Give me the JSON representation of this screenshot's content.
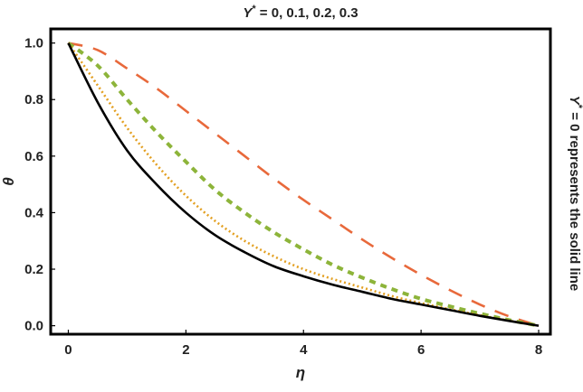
{
  "chart_data": {
    "type": "line",
    "title": {
      "var": "Y",
      "sup": "*",
      "rest": " = 0, 0.1, 0.2, 0.3"
    },
    "side_note": {
      "var": "Y",
      "sup": "*",
      "rest": " = 0 represents the solid line"
    },
    "xlabel": "η",
    "ylabel": "θ",
    "xlim": [
      -0.3,
      8.2
    ],
    "ylim": [
      -0.03,
      1.05
    ],
    "xticks": [
      0,
      2,
      4,
      6,
      8
    ],
    "xtick_labels": [
      "0",
      "2",
      "4",
      "6",
      "8"
    ],
    "yticks": [
      0.0,
      0.2,
      0.4,
      0.6,
      0.8,
      1.0
    ],
    "ytick_labels": [
      "0.0",
      "0.2",
      "0.4",
      "0.6",
      "0.8",
      "1.0"
    ],
    "grid": false,
    "series": [
      {
        "color": "#000000",
        "dash": "solid",
        "x": [
          0,
          0.5,
          1,
          1.5,
          2,
          2.5,
          3,
          3.5,
          4,
          4.5,
          5,
          5.5,
          6,
          6.5,
          7,
          7.5,
          8
        ],
        "y": [
          1.0,
          0.79,
          0.62,
          0.5,
          0.4,
          0.32,
          0.26,
          0.21,
          0.175,
          0.145,
          0.12,
          0.095,
          0.075,
          0.055,
          0.035,
          0.017,
          0.0
        ]
      },
      {
        "color": "#e3a022",
        "dash": "dotted",
        "x": [
          0,
          0.5,
          1,
          1.5,
          2,
          2.5,
          3,
          3.5,
          4,
          4.5,
          5,
          5.5,
          6,
          6.5,
          7,
          7.5,
          8
        ],
        "y": [
          1.0,
          0.85,
          0.7,
          0.57,
          0.46,
          0.37,
          0.3,
          0.245,
          0.2,
          0.165,
          0.135,
          0.105,
          0.08,
          0.058,
          0.037,
          0.018,
          0.0
        ]
      },
      {
        "color": "#8db43a",
        "dash": "dashed",
        "x": [
          0,
          0.5,
          1,
          1.5,
          2,
          2.5,
          3,
          3.5,
          4,
          4.5,
          5,
          5.5,
          6,
          6.5,
          7,
          7.5,
          8
        ],
        "y": [
          1.0,
          0.92,
          0.8,
          0.685,
          0.58,
          0.48,
          0.4,
          0.33,
          0.27,
          0.215,
          0.17,
          0.13,
          0.095,
          0.068,
          0.043,
          0.02,
          0.0
        ]
      },
      {
        "color": "#e8693b",
        "dash": "longdash",
        "x": [
          0,
          0.5,
          1,
          1.5,
          2,
          2.5,
          3,
          3.5,
          4,
          4.5,
          5,
          5.5,
          6,
          6.5,
          7,
          7.5,
          8
        ],
        "y": [
          1.0,
          0.975,
          0.91,
          0.84,
          0.76,
          0.68,
          0.6,
          0.52,
          0.445,
          0.375,
          0.305,
          0.24,
          0.18,
          0.125,
          0.075,
          0.033,
          0.0
        ]
      }
    ]
  }
}
